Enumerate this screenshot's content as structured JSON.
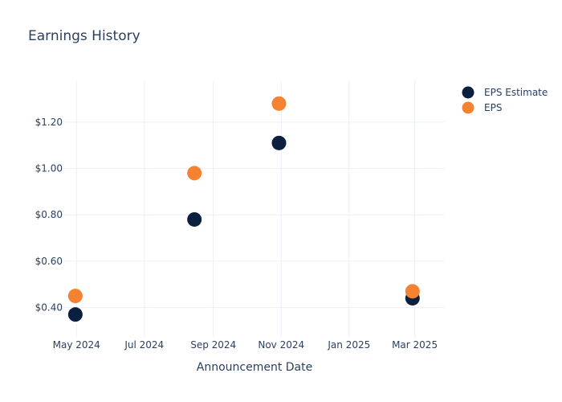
{
  "chart_data": {
    "type": "scatter",
    "title": "Earnings History",
    "xlabel": "Announcement Date",
    "ylabel": "",
    "x_ticks": [
      {
        "date": "2024-05-01",
        "label": "May 2024"
      },
      {
        "date": "2024-07-01",
        "label": "Jul 2024"
      },
      {
        "date": "2024-09-01",
        "label": "Sep 2024"
      },
      {
        "date": "2024-11-01",
        "label": "Nov 2024"
      },
      {
        "date": "2025-01-01",
        "label": "Jan 2025"
      },
      {
        "date": "2025-03-01",
        "label": "Mar 2025"
      }
    ],
    "y_ticks": [
      {
        "value": 0.4,
        "label": "$0.40"
      },
      {
        "value": 0.6,
        "label": "$0.60"
      },
      {
        "value": 0.8,
        "label": "$0.80"
      },
      {
        "value": 1.0,
        "label": "$1.00"
      },
      {
        "value": 1.2,
        "label": "$1.20"
      }
    ],
    "xlim": [
      "2024-04-20",
      "2025-03-28"
    ],
    "ylim": [
      0.27,
      1.38
    ],
    "grid": true,
    "legend_position": "top-right",
    "series": [
      {
        "name": "EPS Estimate",
        "color": "#0b1f3f",
        "points": [
          {
            "x": "2024-04-30",
            "y": 0.37
          },
          {
            "x": "2024-08-15",
            "y": 0.78
          },
          {
            "x": "2024-10-30",
            "y": 1.11
          },
          {
            "x": "2025-02-27",
            "y": 0.44
          }
        ]
      },
      {
        "name": "EPS",
        "color": "#f58231",
        "points": [
          {
            "x": "2024-04-30",
            "y": 0.45
          },
          {
            "x": "2024-08-15",
            "y": 0.98
          },
          {
            "x": "2024-10-30",
            "y": 1.28
          },
          {
            "x": "2025-02-27",
            "y": 0.47
          }
        ]
      }
    ]
  }
}
